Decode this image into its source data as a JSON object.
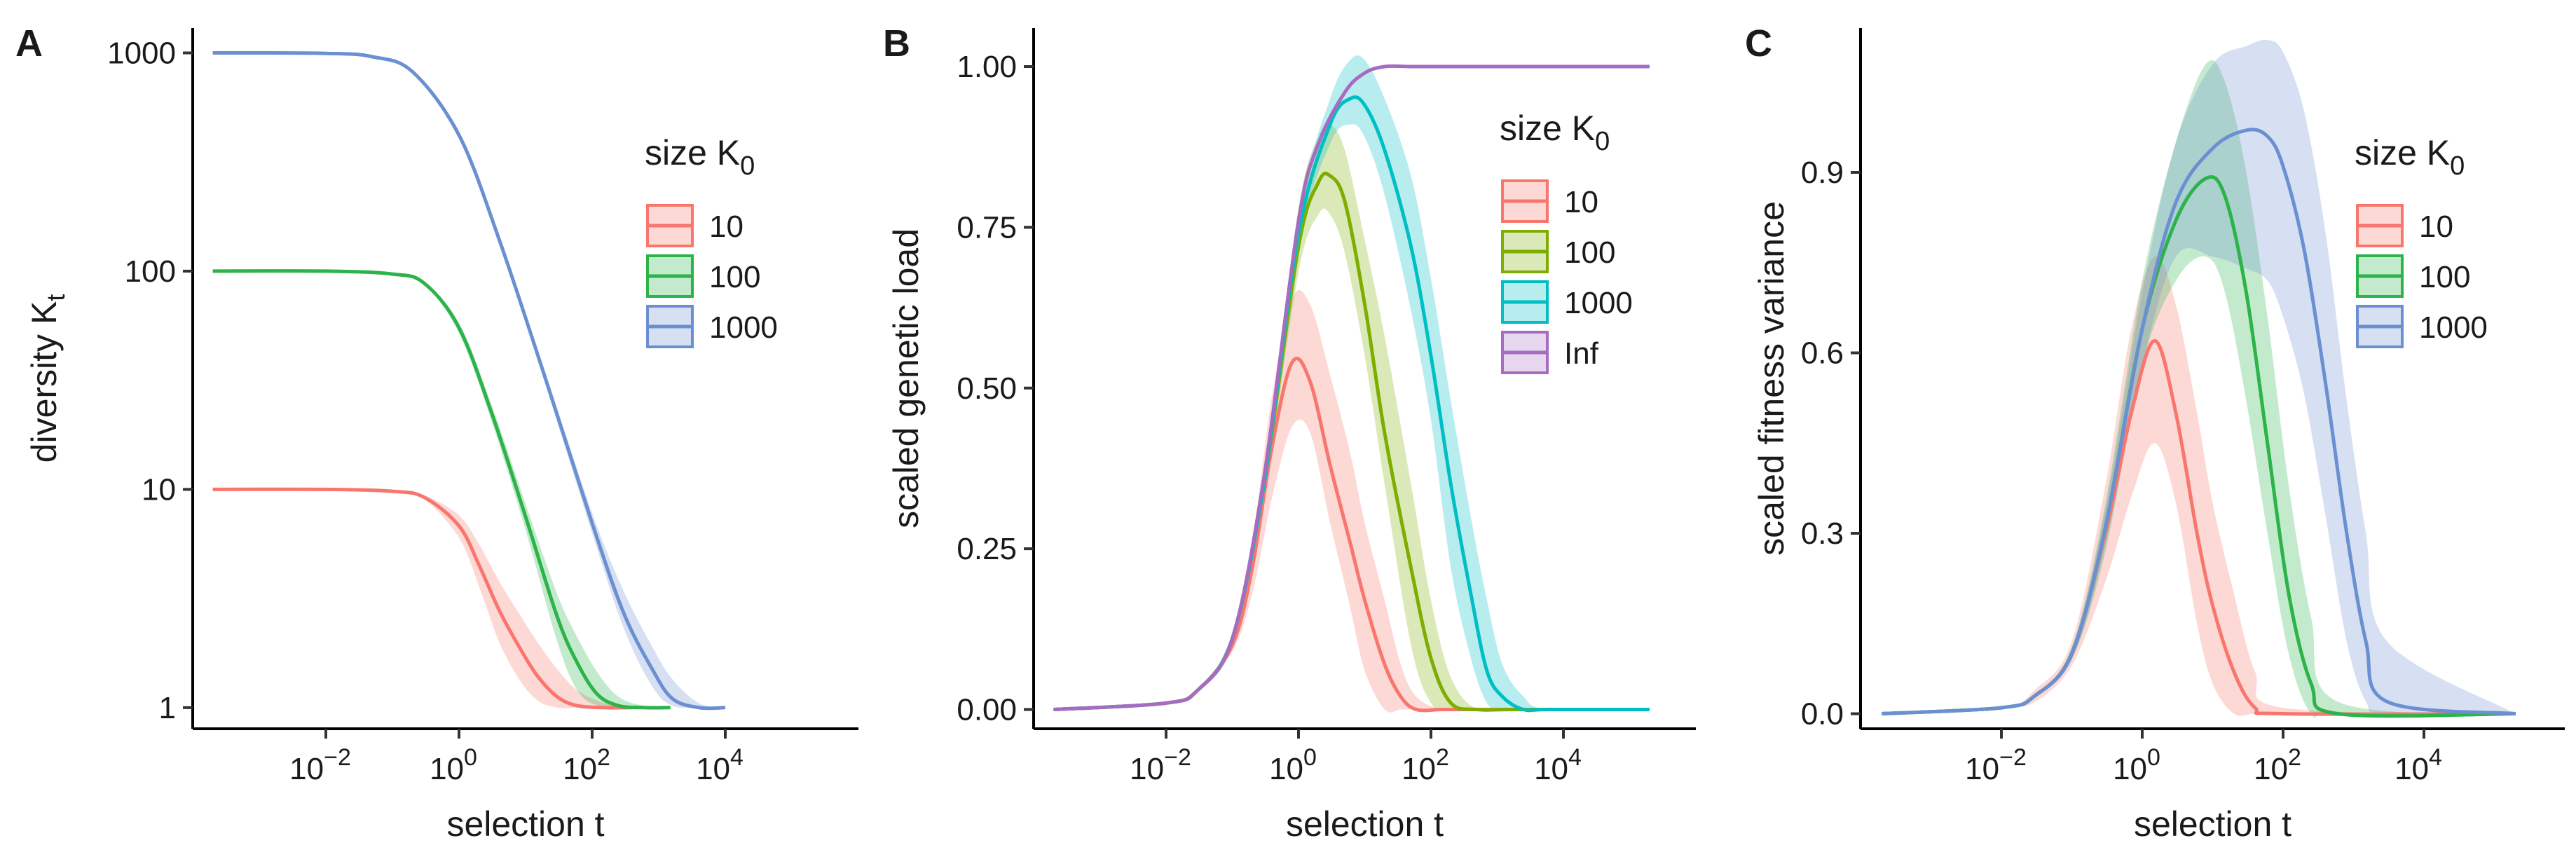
{
  "chart_data": [
    {
      "type": "line",
      "panel": "A",
      "title": "",
      "xlabel": "selection t",
      "ylabel": "diversity K",
      "ylabel_sub": "t",
      "x_scale": "log10",
      "y_scale": "log10",
      "xlim": [
        0.0001,
        1000000
      ],
      "ylim": [
        0.8,
        1300
      ],
      "x_ticks": [
        {
          "value": 0.01,
          "base": "10",
          "exp": "−2"
        },
        {
          "value": 1,
          "base": "10",
          "exp": "0"
        },
        {
          "value": 100,
          "base": "10",
          "exp": "2"
        },
        {
          "value": 10000,
          "base": "10",
          "exp": "4"
        }
      ],
      "y_ticks": [
        {
          "value": 1,
          "label": "1"
        },
        {
          "value": 10,
          "label": "10"
        },
        {
          "value": 100,
          "label": "100"
        },
        {
          "value": 1000,
          "label": "1000"
        }
      ],
      "legend": {
        "title": "size K",
        "title_sub": "0",
        "position": "right",
        "entries": [
          "10",
          "100",
          "1000"
        ]
      },
      "series": [
        {
          "name": "10",
          "color": "#F8766D",
          "x": [
            0.0002,
            0.01,
            0.1,
            0.3,
            1,
            2,
            4,
            8,
            15,
            30,
            60,
            150,
            400
          ],
          "y": [
            10,
            10,
            9.8,
            9.2,
            6.8,
            4.5,
            2.8,
            1.9,
            1.4,
            1.12,
            1.02,
            1,
            1
          ],
          "lower": [
            10,
            10,
            9.8,
            9.0,
            6.0,
            3.6,
            2.0,
            1.35,
            1.08,
            1,
            1,
            1,
            1
          ],
          "upper": [
            10,
            10,
            9.9,
            9.4,
            7.6,
            5.6,
            3.8,
            2.7,
            2.0,
            1.5,
            1.2,
            1.05,
            1
          ]
        },
        {
          "name": "100",
          "color": "#2CB34A",
          "x": [
            0.0002,
            0.01,
            0.1,
            0.3,
            1,
            3,
            10,
            30,
            60,
            120,
            250,
            600,
            1500
          ],
          "y": [
            100,
            100,
            97,
            88,
            55,
            23,
            7.5,
            2.6,
            1.6,
            1.15,
            1.02,
            1,
            1
          ],
          "lower": [
            100,
            100,
            97,
            87,
            52,
            21,
            6.5,
            2.0,
            1.2,
            1.02,
            1,
            1,
            1
          ],
          "upper": [
            100,
            100,
            98,
            89,
            58,
            25,
            8.6,
            3.3,
            2.1,
            1.45,
            1.12,
            1.02,
            1
          ]
        },
        {
          "name": "1000",
          "color": "#6A90D2",
          "x": [
            0.0002,
            0.01,
            0.05,
            0.2,
            1,
            4,
            20,
            100,
            300,
            800,
            1600,
            4000,
            10000
          ],
          "y": [
            1000,
            995,
            960,
            820,
            420,
            140,
            32,
            7,
            2.7,
            1.5,
            1.1,
            1,
            1
          ],
          "lower": [
            1000,
            995,
            958,
            815,
            410,
            135,
            30,
            6.3,
            2.3,
            1.25,
            1.02,
            1,
            1
          ],
          "upper": [
            1000,
            996,
            962,
            825,
            430,
            145,
            34,
            7.8,
            3.4,
            1.9,
            1.35,
            1.05,
            1
          ]
        }
      ]
    },
    {
      "type": "line",
      "panel": "B",
      "title": "",
      "xlabel": "selection t",
      "ylabel": "scaled genetic load",
      "x_scale": "log10",
      "y_scale": "linear",
      "xlim": [
        0.0001,
        1000000
      ],
      "ylim": [
        -0.03,
        1.06
      ],
      "x_ticks": [
        {
          "value": 0.01,
          "base": "10",
          "exp": "−2"
        },
        {
          "value": 1,
          "base": "10",
          "exp": "0"
        },
        {
          "value": 100,
          "base": "10",
          "exp": "2"
        },
        {
          "value": 10000,
          "base": "10",
          "exp": "4"
        }
      ],
      "y_ticks": [
        {
          "value": 0,
          "label": "0.00"
        },
        {
          "value": 0.25,
          "label": "0.25"
        },
        {
          "value": 0.5,
          "label": "0.50"
        },
        {
          "value": 0.75,
          "label": "0.75"
        },
        {
          "value": 1,
          "label": "1.00"
        }
      ],
      "legend": {
        "title": "size K",
        "title_sub": "0",
        "position": "right",
        "entries": [
          "10",
          "100",
          "1000",
          "Inf"
        ]
      },
      "series": [
        {
          "name": "10",
          "color": "#F8766D",
          "x": [
            0.0002,
            0.01,
            0.03,
            0.1,
            0.2,
            0.4,
            0.8,
            1.5,
            3,
            6,
            10,
            20,
            35,
            60,
            150,
            500,
            200000
          ],
          "y": [
            0,
            0.01,
            0.03,
            0.1,
            0.22,
            0.41,
            0.54,
            0.51,
            0.38,
            0.26,
            0.17,
            0.07,
            0.02,
            0.0,
            0,
            0,
            0
          ],
          "lower": [
            0,
            0.01,
            0.03,
            0.09,
            0.18,
            0.33,
            0.44,
            0.43,
            0.29,
            0.16,
            0.06,
            0.0,
            0,
            0,
            0,
            0,
            0
          ],
          "upper": [
            0,
            0.01,
            0.03,
            0.11,
            0.26,
            0.49,
            0.64,
            0.63,
            0.52,
            0.4,
            0.29,
            0.17,
            0.07,
            0.02,
            0,
            0,
            0
          ]
        },
        {
          "name": "100",
          "color": "#7CAE00",
          "x": [
            0.0002,
            0.01,
            0.03,
            0.1,
            0.3,
            1,
            2,
            3,
            5,
            10,
            20,
            50,
            100,
            200,
            500,
            2000,
            200000
          ],
          "y": [
            0,
            0.01,
            0.03,
            0.11,
            0.35,
            0.72,
            0.82,
            0.83,
            0.79,
            0.63,
            0.43,
            0.22,
            0.08,
            0.01,
            0,
            0,
            0
          ],
          "lower": [
            0,
            0.01,
            0.03,
            0.1,
            0.33,
            0.68,
            0.77,
            0.77,
            0.71,
            0.55,
            0.35,
            0.1,
            0.01,
            0,
            0,
            0,
            0
          ],
          "upper": [
            0,
            0.01,
            0.03,
            0.12,
            0.37,
            0.78,
            0.89,
            0.91,
            0.87,
            0.73,
            0.58,
            0.35,
            0.17,
            0.05,
            0,
            0,
            0
          ]
        },
        {
          "name": "1000",
          "color": "#00BFC4",
          "x": [
            0.0002,
            0.01,
            0.03,
            0.1,
            0.3,
            1,
            3,
            6,
            10,
            20,
            50,
            100,
            200,
            400,
            700,
            1200,
            2500,
            6000,
            200000
          ],
          "y": [
            0,
            0.01,
            0.03,
            0.11,
            0.35,
            0.74,
            0.91,
            0.95,
            0.94,
            0.87,
            0.72,
            0.55,
            0.35,
            0.18,
            0.06,
            0.02,
            0,
            0,
            0
          ],
          "lower": [
            0,
            0.01,
            0.03,
            0.1,
            0.34,
            0.72,
            0.88,
            0.91,
            0.89,
            0.8,
            0.62,
            0.45,
            0.22,
            0.08,
            0.01,
            0,
            0,
            0,
            0
          ],
          "upper": [
            0,
            0.01,
            0.03,
            0.12,
            0.36,
            0.77,
            0.95,
            1.01,
            1.01,
            0.95,
            0.83,
            0.67,
            0.48,
            0.3,
            0.17,
            0.07,
            0.02,
            0,
            0
          ]
        },
        {
          "name": "Inf",
          "color": "#A56CC1",
          "x": [
            0.0002,
            0.01,
            0.03,
            0.1,
            0.3,
            1,
            2,
            5,
            10,
            20,
            50,
            100,
            1000,
            200000
          ],
          "y": [
            0,
            0.01,
            0.03,
            0.11,
            0.36,
            0.76,
            0.88,
            0.96,
            0.99,
            1.0,
            1.0,
            1.0,
            1.0,
            1.0
          ],
          "lower": null,
          "upper": null
        }
      ]
    },
    {
      "type": "line",
      "panel": "C",
      "title": "",
      "xlabel": "selection t",
      "ylabel": "scaled fitness variance",
      "x_scale": "log10",
      "y_scale": "linear",
      "xlim": [
        0.0001,
        1000000
      ],
      "ylim": [
        -0.025,
        1.14
      ],
      "x_ticks": [
        {
          "value": 0.01,
          "base": "10",
          "exp": "−2"
        },
        {
          "value": 1,
          "base": "10",
          "exp": "0"
        },
        {
          "value": 100,
          "base": "10",
          "exp": "2"
        },
        {
          "value": 10000,
          "base": "10",
          "exp": "4"
        }
      ],
      "y_ticks": [
        {
          "value": 0,
          "label": "0.0"
        },
        {
          "value": 0.3,
          "label": "0.3"
        },
        {
          "value": 0.6,
          "label": "0.6"
        },
        {
          "value": 0.9,
          "label": "0.9"
        }
      ],
      "legend": {
        "title": "size K",
        "title_sub": "0",
        "position": "right",
        "entries": [
          "10",
          "100",
          "1000"
        ]
      },
      "series": [
        {
          "name": "10",
          "color": "#F8766D",
          "x": [
            0.0002,
            0.01,
            0.03,
            0.1,
            0.3,
            0.7,
            1.5,
            3,
            6,
            10,
            20,
            40,
            100,
            200000
          ],
          "y": [
            0,
            0.01,
            0.03,
            0.1,
            0.3,
            0.5,
            0.62,
            0.5,
            0.3,
            0.18,
            0.07,
            0.01,
            0,
            0
          ],
          "lower": [
            0,
            0.01,
            0.02,
            0.08,
            0.22,
            0.36,
            0.45,
            0.35,
            0.15,
            0.05,
            0,
            0,
            0,
            0
          ],
          "upper": [
            0,
            0.01,
            0.04,
            0.12,
            0.38,
            0.64,
            0.76,
            0.68,
            0.5,
            0.35,
            0.2,
            0.07,
            0.01,
            0
          ]
        },
        {
          "name": "100",
          "color": "#2CB34A",
          "x": [
            0.0002,
            0.01,
            0.03,
            0.1,
            0.3,
            1,
            3,
            8,
            15,
            30,
            60,
            120,
            250,
            600,
            200000
          ],
          "y": [
            0,
            0.01,
            0.03,
            0.1,
            0.31,
            0.64,
            0.82,
            0.89,
            0.86,
            0.7,
            0.45,
            0.2,
            0.05,
            0,
            0
          ],
          "lower": [
            0,
            0.01,
            0.03,
            0.09,
            0.27,
            0.58,
            0.72,
            0.76,
            0.7,
            0.52,
            0.3,
            0.1,
            0,
            0,
            0
          ],
          "upper": [
            0,
            0.01,
            0.03,
            0.11,
            0.35,
            0.72,
            0.95,
            1.08,
            1.05,
            0.9,
            0.66,
            0.38,
            0.16,
            0.02,
            0
          ]
        },
        {
          "name": "1000",
          "color": "#6A90D2",
          "x": [
            0.0002,
            0.01,
            0.03,
            0.1,
            0.3,
            1,
            3,
            10,
            30,
            60,
            100,
            200,
            400,
            800,
            1500,
            3000,
            200000
          ],
          "y": [
            0,
            0.01,
            0.03,
            0.1,
            0.31,
            0.64,
            0.85,
            0.94,
            0.97,
            0.96,
            0.91,
            0.77,
            0.55,
            0.3,
            0.12,
            0.02,
            0
          ],
          "lower": [
            0,
            0.01,
            0.03,
            0.09,
            0.28,
            0.58,
            0.76,
            0.76,
            0.74,
            0.72,
            0.66,
            0.53,
            0.33,
            0.12,
            0.02,
            0,
            0
          ],
          "upper": [
            0,
            0.01,
            0.03,
            0.11,
            0.34,
            0.7,
            0.95,
            1.08,
            1.11,
            1.12,
            1.1,
            1.0,
            0.8,
            0.52,
            0.3,
            0.12,
            0
          ]
        }
      ]
    }
  ]
}
